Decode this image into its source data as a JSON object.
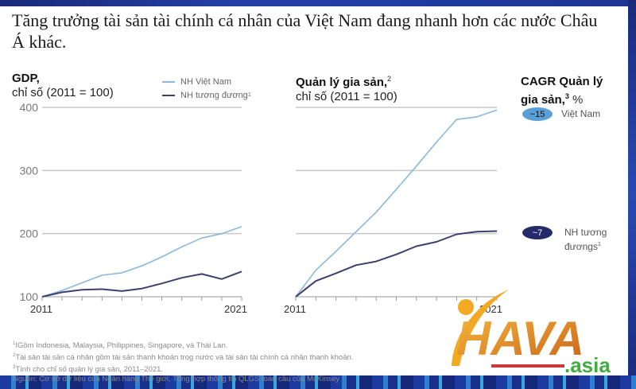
{
  "title": "Tăng trưởng tài sản tài chính cá nhân của Việt Nam đang nhanh hơn các nước Châu Á khác.",
  "left_panel": {
    "heading_bold": "GDP,",
    "heading_sub": "chỉ số (2011 = 100)"
  },
  "right_panel": {
    "heading_bold": "Quản lý gia sản,",
    "heading_sup": "2",
    "heading_sub": "chỉ số (2011 = 100)"
  },
  "legend": {
    "items": [
      {
        "label": "NH Việt Nam",
        "color": "#8ab8dc"
      },
      {
        "label": "NH tương đương",
        "sup": "1",
        "color": "#3d3f6e"
      }
    ]
  },
  "cagr": {
    "title_line1": "CAGR Quản lý",
    "title_line2": "gia sản,",
    "title_sup": "3",
    "title_unit": "%",
    "items": [
      {
        "value": "~15",
        "label": "Việt Nam",
        "pill_color": "#5aa0d8",
        "text_color": "#111111"
      },
      {
        "value": "~7",
        "label_line1": "NH tương",
        "label_line2": "đươngs",
        "label_sup": "1",
        "pill_color": "#262a6a",
        "text_color": "#ffffff"
      }
    ]
  },
  "footnotes": [
    {
      "sup": "1",
      "text": "IGồm Indonesia, Malaysia, Philippines, Singapore, và Thái Lan."
    },
    {
      "sup": "2",
      "text": "Tài sản tài sản cá nhân gồm tài sản thanh khoản trog nước và tài sản tài chính cá nhân thanh khoản."
    },
    {
      "sup": "3",
      "text": "Tính cho chỉ số quản lý gia sản, 2011–2021."
    },
    {
      "sup": "",
      "text": " Nguồn: Cơ sở dữ liệu của Ngân hàng Thế giới, Tổng hợp thông tin QLGS toàn cầu của McKinsey"
    }
  ],
  "watermark": {
    "main": "HAVA",
    "suffix": ".asia"
  },
  "chart_data": [
    {
      "type": "line",
      "title": "GDP, chỉ số (2011 = 100)",
      "xlabel": "",
      "ylabel": "",
      "x": [
        2011,
        2012,
        2013,
        2014,
        2015,
        2016,
        2017,
        2018,
        2019,
        2020,
        2021
      ],
      "x_tick_labels": [
        "2011",
        "2021"
      ],
      "y_ticks": [
        100,
        200,
        300,
        400
      ],
      "ylim": [
        100,
        400
      ],
      "grid": true,
      "legend_position": "top-right",
      "series": [
        {
          "name": "NH Việt Nam",
          "color": "#8ab8dc",
          "values": [
            100,
            110,
            122,
            134,
            138,
            149,
            163,
            179,
            193,
            200,
            211
          ]
        },
        {
          "name": "NH tương đương",
          "color": "#3d3f6e",
          "values": [
            100,
            107,
            111,
            112,
            109,
            113,
            121,
            130,
            136,
            128,
            140
          ]
        }
      ]
    },
    {
      "type": "line",
      "title": "Quản lý gia sản, chỉ số (2011 = 100)",
      "xlabel": "",
      "ylabel": "",
      "x": [
        2011,
        2012,
        2013,
        2014,
        2015,
        2016,
        2017,
        2018,
        2019,
        2020,
        2021
      ],
      "x_tick_labels": [
        "2011",
        "2021"
      ],
      "y_ticks": [
        100,
        200,
        300,
        400
      ],
      "ylim": [
        100,
        400
      ],
      "grid": true,
      "series": [
        {
          "name": "NH Việt Nam",
          "color": "#8ab8dc",
          "values": [
            100,
            142,
            172,
            203,
            234,
            270,
            307,
            345,
            381,
            385,
            396
          ]
        },
        {
          "name": "NH tương đương",
          "color": "#3d3f6e",
          "values": [
            100,
            125,
            137,
            150,
            156,
            167,
            180,
            187,
            199,
            203,
            204
          ]
        }
      ],
      "annotations": [
        {
          "label": "CAGR Quản lý gia sản, %",
          "Việt Nam": "~15",
          "NH tương đương": "~7"
        }
      ]
    }
  ]
}
